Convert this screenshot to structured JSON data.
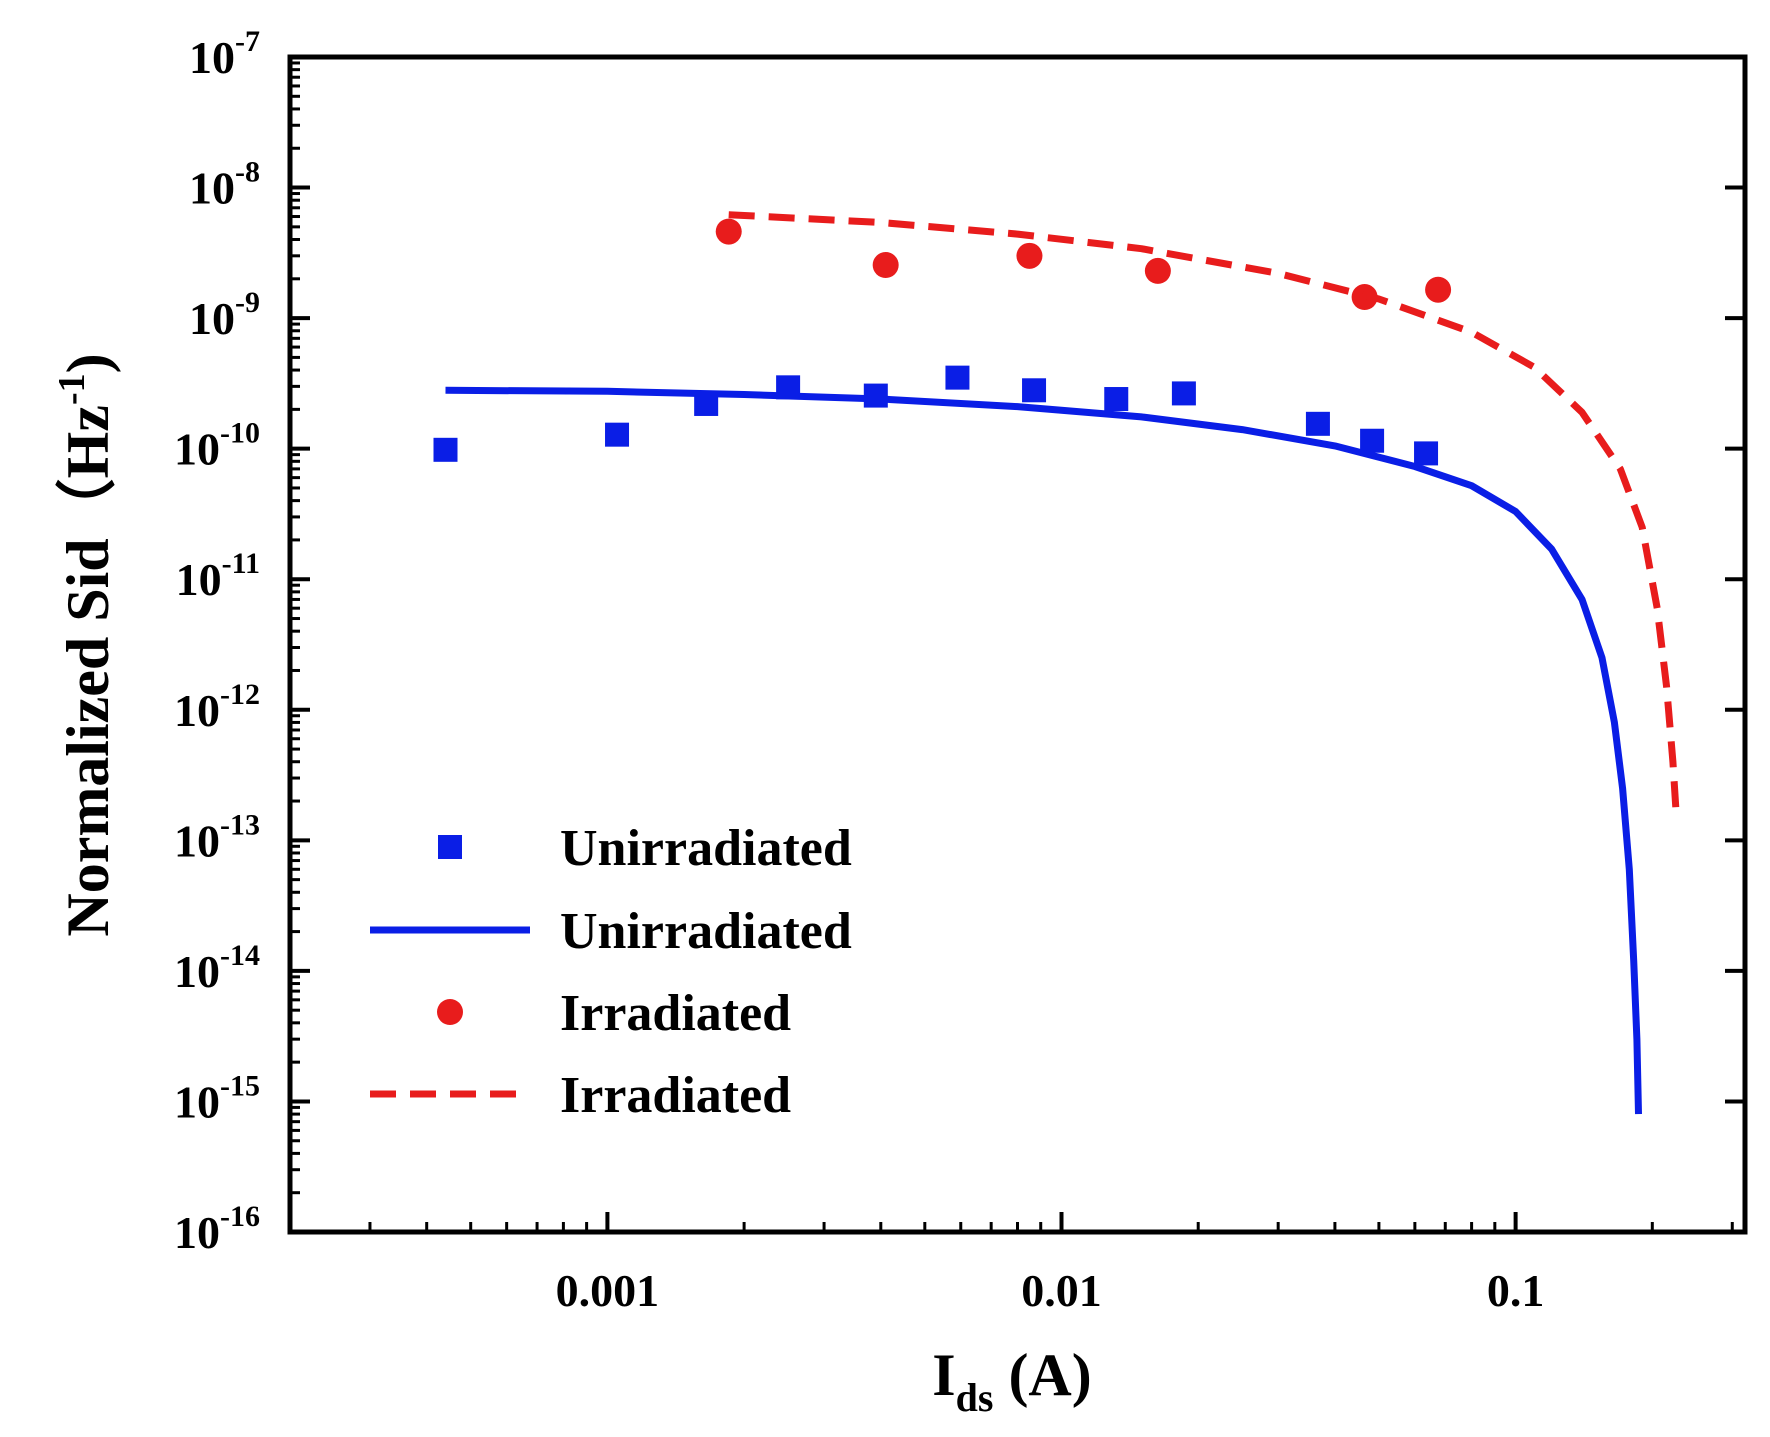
{
  "chart_data": {
    "type": "scatter",
    "title": "",
    "xlabel": {
      "base": "I",
      "sub": "ds",
      "unit": " (A)"
    },
    "ylabel": {
      "main": "Normalized Sid",
      "unit_open": "（Hz",
      "unit_sup": "-1",
      "unit_close": ")"
    },
    "x_scale": "log",
    "y_scale": "log",
    "xlim": [
      0.0002,
      0.32
    ],
    "ylim": [
      1e-16,
      1e-07
    ],
    "x_ticks": [
      {
        "value": 0.001,
        "label": "0.001"
      },
      {
        "value": 0.01,
        "label": "0.01"
      },
      {
        "value": 0.1,
        "label": "0.1"
      }
    ],
    "y_ticks": [
      {
        "value": 1e-07,
        "base": "10",
        "exp": "-7"
      },
      {
        "value": 1e-08,
        "base": "10",
        "exp": "-8"
      },
      {
        "value": 1e-09,
        "base": "10",
        "exp": "-9"
      },
      {
        "value": 1e-10,
        "base": "10",
        "exp": "-10"
      },
      {
        "value": 1e-11,
        "base": "10",
        "exp": "-11"
      },
      {
        "value": 1e-12,
        "base": "10",
        "exp": "-12"
      },
      {
        "value": 1e-13,
        "base": "10",
        "exp": "-13"
      },
      {
        "value": 1e-14,
        "base": "10",
        "exp": "-14"
      },
      {
        "value": 1e-15,
        "base": "10",
        "exp": "-15"
      },
      {
        "value": 1e-16,
        "base": "10",
        "exp": "-16"
      }
    ],
    "series": [
      {
        "name": "Unirradiated",
        "kind": "markers",
        "marker": "square",
        "color": "#0a1ee6",
        "x": [
          0.00044,
          0.00105,
          0.00165,
          0.0025,
          0.0039,
          0.0059,
          0.0087,
          0.0132,
          0.0186,
          0.0367,
          0.0483,
          0.0635
        ],
        "y": [
          9.8e-11,
          1.28e-10,
          2.2e-10,
          2.95e-10,
          2.55e-10,
          3.5e-10,
          2.8e-10,
          2.4e-10,
          2.65e-10,
          1.55e-10,
          1.15e-10,
          9.2e-11
        ]
      },
      {
        "name": "Unirradiated",
        "kind": "line",
        "dash": "solid",
        "color": "#0a1ee6",
        "x": [
          0.00044,
          0.001,
          0.002,
          0.004,
          0.008,
          0.015,
          0.025,
          0.04,
          0.06,
          0.08,
          0.1,
          0.12,
          0.14,
          0.155,
          0.165,
          0.172,
          0.178,
          0.182,
          0.185,
          0.1865
        ],
        "y": [
          2.8e-10,
          2.75e-10,
          2.6e-10,
          2.4e-10,
          2.1e-10,
          1.75e-10,
          1.4e-10,
          1.05e-10,
          7.3e-11,
          5.2e-11,
          3.3e-11,
          1.7e-11,
          7e-12,
          2.5e-12,
          8e-13,
          2.5e-13,
          6e-14,
          1.2e-14,
          3e-15,
          8e-16
        ]
      },
      {
        "name": "Irradiated",
        "kind": "markers",
        "marker": "circle",
        "color": "#e81c1c",
        "x": [
          0.00185,
          0.0041,
          0.0085,
          0.0163,
          0.0465,
          0.0675
        ],
        "y": [
          4.6e-09,
          2.55e-09,
          3e-09,
          2.3e-09,
          1.45e-09,
          1.65e-09
        ]
      },
      {
        "name": "Irradiated",
        "kind": "line",
        "dash": "dashed",
        "color": "#e81c1c",
        "x": [
          0.00185,
          0.004,
          0.008,
          0.015,
          0.03,
          0.05,
          0.08,
          0.11,
          0.14,
          0.17,
          0.19,
          0.205,
          0.215,
          0.222,
          0.226
        ],
        "y": [
          6.2e-09,
          5.4e-09,
          4.4e-09,
          3.4e-09,
          2.2e-09,
          1.4e-09,
          7.8e-10,
          4.2e-10,
          1.9e-10,
          7e-11,
          2.5e-11,
          6e-12,
          1.5e-12,
          4e-13,
          1.5e-13
        ]
      }
    ],
    "legend": {
      "location": "lower-left",
      "entries": [
        {
          "label": "Unirradiated",
          "symbol": "square",
          "color": "#0a1ee6"
        },
        {
          "label": "Unirradiated",
          "symbol": "solid-line",
          "color": "#0a1ee6"
        },
        {
          "label": "Irradiated",
          "symbol": "circle",
          "color": "#e81c1c"
        },
        {
          "label": "Irradiated",
          "symbol": "dashed-line",
          "color": "#e81c1c"
        }
      ]
    }
  }
}
